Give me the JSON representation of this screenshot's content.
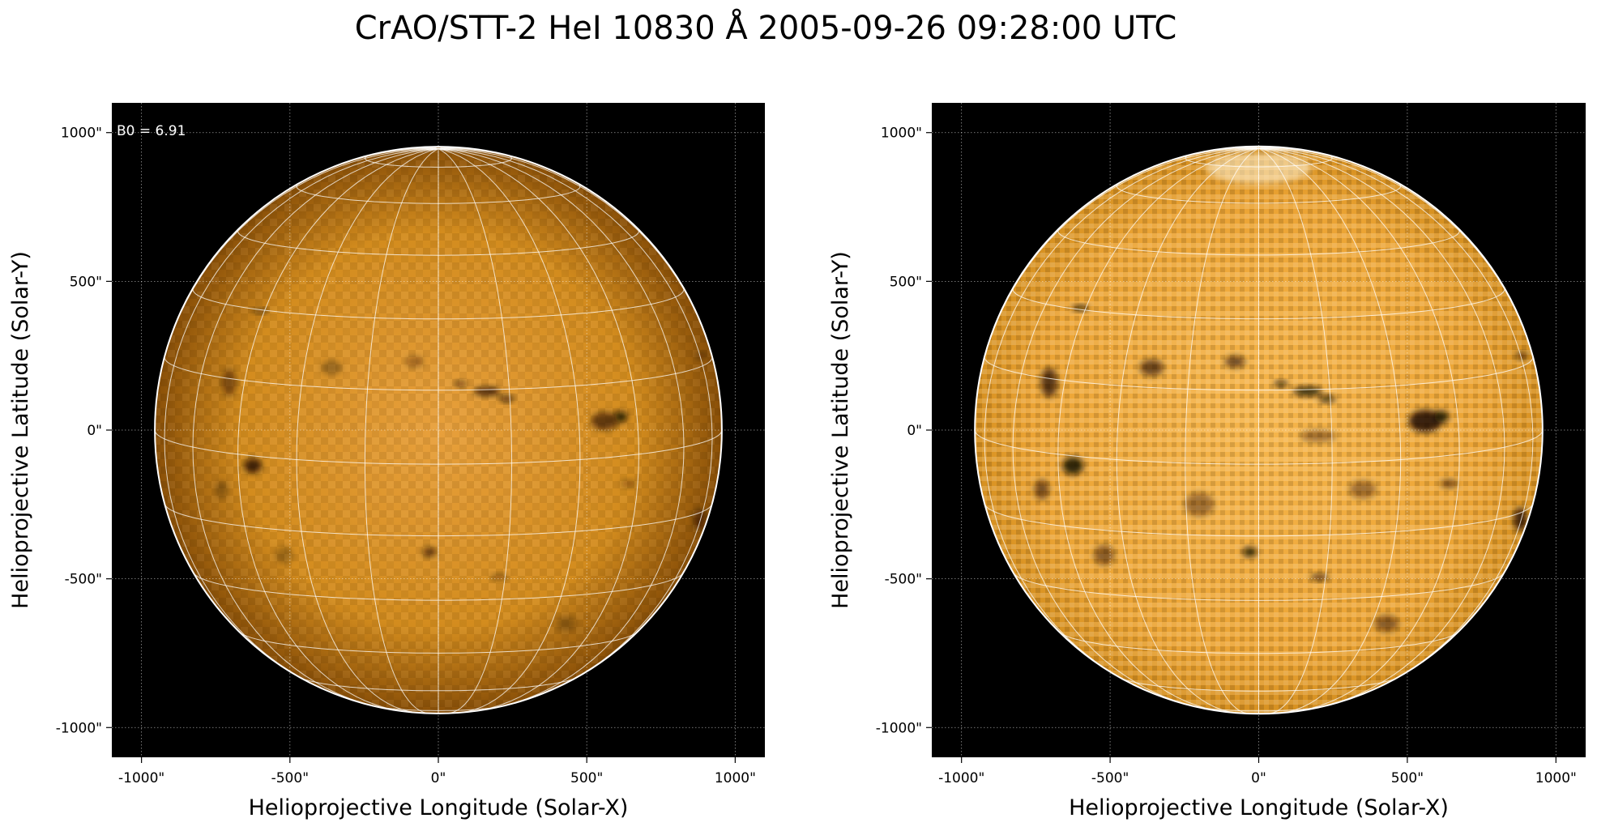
{
  "figure": {
    "title": "CrAO/STT-2 HeI 10830 Å 2005-09-26 09:28:00 UTC"
  },
  "chart_data": [
    {
      "type": "heatmap",
      "title": "",
      "xlabel": "Helioprojective Longitude (Solar-X)",
      "ylabel": "Helioprojective Latitude (Solar-Y)",
      "xlim": [
        -1100,
        1100
      ],
      "ylim": [
        -1100,
        1100
      ],
      "x_ticks": [
        -1000,
        -500,
        0,
        500,
        1000
      ],
      "y_ticks": [
        1000,
        500,
        0,
        -500,
        -1000
      ],
      "x_tick_labels": [
        "-1000\"",
        "-500\"",
        "0\"",
        "500\"",
        "1000\""
      ],
      "y_tick_labels": [
        "1000\"",
        "500\"",
        "0\"",
        "-500\"",
        "-1000\""
      ],
      "annotation": "B0 = 6.91",
      "solar_radius_arcsec": 955,
      "b0_deg": 6.91,
      "grid": true,
      "colormap": "sdo-orange",
      "contrast": "normal",
      "dark_features": [
        {
          "x": -600,
          "y": 400,
          "rx": 25,
          "ry": 8,
          "strength": 0.7
        },
        {
          "x": 75,
          "y": 155,
          "rx": 20,
          "ry": 10,
          "strength": 0.7
        },
        {
          "x": 165,
          "y": 130,
          "rx": 45,
          "ry": 14,
          "strength": 0.9
        },
        {
          "x": 230,
          "y": 105,
          "rx": 25,
          "ry": 10,
          "strength": 0.9
        },
        {
          "x": 560,
          "y": 30,
          "rx": 45,
          "ry": 30,
          "strength": 0.7
        },
        {
          "x": 615,
          "y": 45,
          "rx": 22,
          "ry": 18,
          "strength": 1.0
        },
        {
          "x": -625,
          "y": -120,
          "rx": 30,
          "ry": 25,
          "strength": 0.9
        },
        {
          "x": -705,
          "y": 160,
          "rx": 25,
          "ry": 45,
          "strength": 0.5
        },
        {
          "x": -30,
          "y": -410,
          "rx": 22,
          "ry": 15,
          "strength": 0.8
        },
        {
          "x": 205,
          "y": -495,
          "rx": 28,
          "ry": 10,
          "strength": 0.5
        },
        {
          "x": 640,
          "y": -180,
          "rx": 25,
          "ry": 12,
          "strength": 0.4
        },
        {
          "x": 885,
          "y": 250,
          "rx": 18,
          "ry": 10,
          "strength": 0.5
        },
        {
          "x": 880,
          "y": -300,
          "rx": 20,
          "ry": 35,
          "strength": 0.6
        },
        {
          "x": -360,
          "y": 210,
          "rx": 35,
          "ry": 25,
          "strength": 0.35
        },
        {
          "x": -80,
          "y": 230,
          "rx": 30,
          "ry": 18,
          "strength": 0.4
        },
        {
          "x": -520,
          "y": -420,
          "rx": 30,
          "ry": 30,
          "strength": 0.3
        },
        {
          "x": 430,
          "y": -650,
          "rx": 35,
          "ry": 25,
          "strength": 0.3
        },
        {
          "x": -730,
          "y": -200,
          "rx": 20,
          "ry": 30,
          "strength": 0.35
        }
      ]
    },
    {
      "type": "heatmap",
      "title": "",
      "xlabel": "Helioprojective Longitude (Solar-X)",
      "ylabel": "Helioprojective Latitude (Solar-Y)",
      "xlim": [
        -1100,
        1100
      ],
      "ylim": [
        -1100,
        1100
      ],
      "x_ticks": [
        -1000,
        -500,
        0,
        500,
        1000
      ],
      "y_ticks": [
        1000,
        500,
        0,
        -500,
        -1000
      ],
      "x_tick_labels": [
        "-1000\"",
        "-500\"",
        "0\"",
        "500\"",
        "1000\""
      ],
      "y_tick_labels": [
        "1000\"",
        "500\"",
        "0\"",
        "-500\"",
        "-1000\""
      ],
      "annotation": "",
      "solar_radius_arcsec": 955,
      "b0_deg": 6.91,
      "grid": true,
      "colormap": "sdo-orange",
      "contrast": "enhanced",
      "dark_features": [
        {
          "x": -600,
          "y": 410,
          "rx": 28,
          "ry": 9,
          "strength": 1.0
        },
        {
          "x": 75,
          "y": 155,
          "rx": 22,
          "ry": 10,
          "strength": 1.0
        },
        {
          "x": 165,
          "y": 130,
          "rx": 48,
          "ry": 15,
          "strength": 1.0
        },
        {
          "x": 230,
          "y": 105,
          "rx": 28,
          "ry": 11,
          "strength": 1.0
        },
        {
          "x": 560,
          "y": 30,
          "rx": 55,
          "ry": 38,
          "strength": 0.95
        },
        {
          "x": 615,
          "y": 45,
          "rx": 25,
          "ry": 20,
          "strength": 1.0
        },
        {
          "x": -625,
          "y": -120,
          "rx": 35,
          "ry": 30,
          "strength": 1.0
        },
        {
          "x": -705,
          "y": 160,
          "rx": 28,
          "ry": 50,
          "strength": 0.8
        },
        {
          "x": -30,
          "y": -410,
          "rx": 24,
          "ry": 16,
          "strength": 1.0
        },
        {
          "x": 205,
          "y": -495,
          "rx": 30,
          "ry": 11,
          "strength": 0.8
        },
        {
          "x": 640,
          "y": -180,
          "rx": 28,
          "ry": 13,
          "strength": 0.7
        },
        {
          "x": 885,
          "y": 250,
          "rx": 20,
          "ry": 11,
          "strength": 0.8
        },
        {
          "x": 880,
          "y": -300,
          "rx": 22,
          "ry": 40,
          "strength": 0.9
        },
        {
          "x": -360,
          "y": 210,
          "rx": 40,
          "ry": 28,
          "strength": 0.7
        },
        {
          "x": -80,
          "y": 230,
          "rx": 34,
          "ry": 20,
          "strength": 0.7
        },
        {
          "x": -520,
          "y": -420,
          "rx": 34,
          "ry": 34,
          "strength": 0.55
        },
        {
          "x": 430,
          "y": -650,
          "rx": 40,
          "ry": 28,
          "strength": 0.55
        },
        {
          "x": -730,
          "y": -200,
          "rx": 24,
          "ry": 34,
          "strength": 0.65
        },
        {
          "x": 200,
          "y": -20,
          "rx": 60,
          "ry": 20,
          "strength": 0.45
        },
        {
          "x": -200,
          "y": -250,
          "rx": 50,
          "ry": 40,
          "strength": 0.45
        },
        {
          "x": 350,
          "y": -200,
          "rx": 45,
          "ry": 30,
          "strength": 0.45
        }
      ]
    }
  ],
  "colors": {
    "background": "#000000",
    "disk_core": "#e8a03c",
    "disk_mid": "#d38c1e",
    "disk_edge": "#8a5008",
    "enhanced_core": "#f6b64c",
    "enhanced_mid": "#eca434",
    "enhanced_edge": "#d69020",
    "grid_line": "#ffffff",
    "limb": "#ffffff",
    "dark_feature": "#120800"
  }
}
